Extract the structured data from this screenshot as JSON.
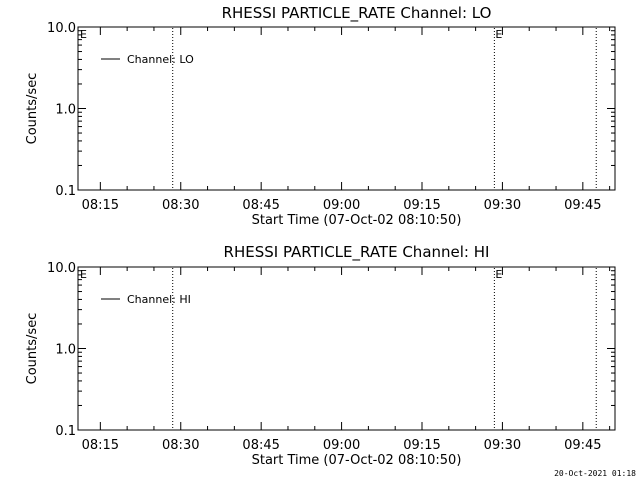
{
  "chart_data": [
    {
      "type": "line",
      "title": "RHESSI PARTICLE_RATE Channel: LO",
      "xlabel": "Start Time (07-Oct-02 08:10:50)",
      "ylabel": "Counts/sec",
      "y_scale": "log",
      "ylim": [
        0.1,
        10.0
      ],
      "xlim": [
        "08:10:50",
        "09:51:00"
      ],
      "x_ticks": [
        "08:15",
        "08:30",
        "08:45",
        "09:00",
        "09:15",
        "09:30",
        "09:45"
      ],
      "y_ticks": [
        "0.1",
        "1.0",
        "10.0"
      ],
      "grid": false,
      "legend_position": "top-left",
      "series": [
        {
          "name": "Channel: LO",
          "x": [],
          "y": []
        }
      ],
      "markers": [
        {
          "time": "08:28:30",
          "style": "dotted",
          "label": ""
        },
        {
          "time": "09:28:30",
          "style": "dotted",
          "label": "E"
        },
        {
          "time": "09:47:30",
          "style": "dotted",
          "label": ""
        }
      ],
      "edge_flags": [
        "E"
      ]
    },
    {
      "type": "line",
      "title": "RHESSI PARTICLE_RATE Channel: HI",
      "xlabel": "Start Time (07-Oct-02 08:10:50)",
      "ylabel": "Counts/sec",
      "y_scale": "log",
      "ylim": [
        0.1,
        10.0
      ],
      "xlim": [
        "08:10:50",
        "09:51:00"
      ],
      "x_ticks": [
        "08:15",
        "08:30",
        "08:45",
        "09:00",
        "09:15",
        "09:30",
        "09:45"
      ],
      "y_ticks": [
        "0.1",
        "1.0",
        "10.0"
      ],
      "grid": false,
      "legend_position": "top-left",
      "series": [
        {
          "name": "Channel: HI",
          "x": [],
          "y": []
        }
      ],
      "markers": [
        {
          "time": "08:28:30",
          "style": "dotted",
          "label": ""
        },
        {
          "time": "09:28:30",
          "style": "dotted",
          "label": "E"
        },
        {
          "time": "09:47:30",
          "style": "dotted",
          "label": ""
        }
      ],
      "edge_flags": [
        "E"
      ]
    }
  ],
  "footer": {
    "timestamp": "20-Oct-2021 01:18"
  },
  "colors": {
    "background": "#ffffff",
    "foreground": "#000000"
  }
}
